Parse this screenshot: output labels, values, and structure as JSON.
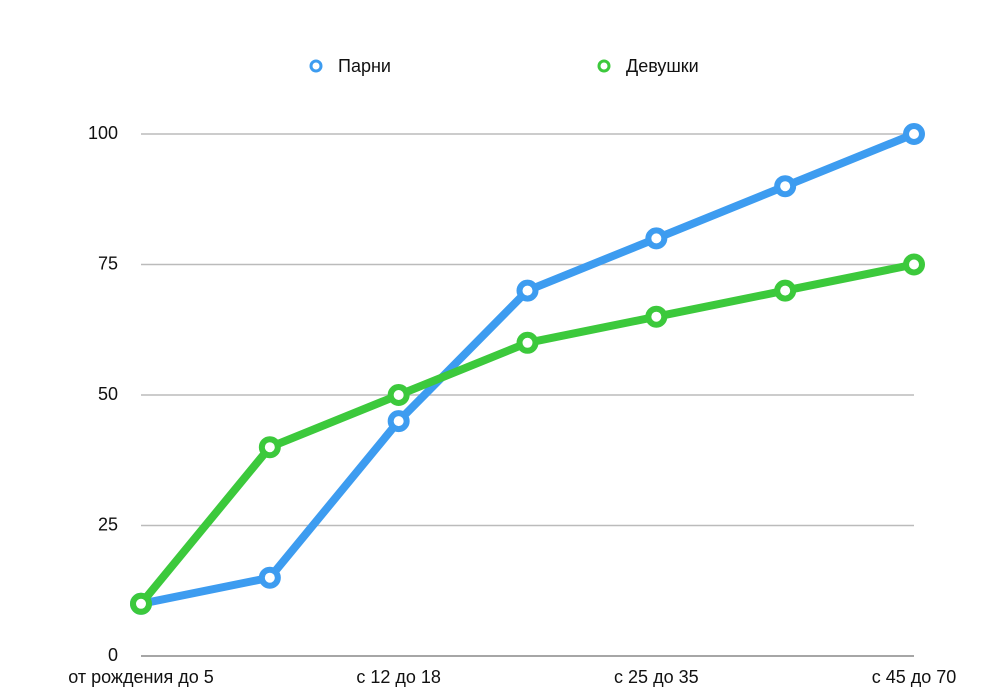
{
  "chart_data": {
    "type": "line",
    "categories": [
      "от рождения до 5",
      null,
      "с 12 до 18",
      null,
      "с 25 до 35",
      null,
      "с 45 до 70"
    ],
    "series": [
      {
        "name": "Парни",
        "color": "#3d9cf0",
        "values": [
          10,
          15,
          45,
          70,
          80,
          90,
          100
        ]
      },
      {
        "name": "Девушки",
        "color": "#3cc93c",
        "values": [
          10,
          40,
          50,
          60,
          65,
          70,
          75
        ]
      }
    ],
    "ylim": [
      0,
      100
    ],
    "yticks": [
      0,
      25,
      50,
      75,
      100
    ],
    "grid": true,
    "legend": "top"
  }
}
